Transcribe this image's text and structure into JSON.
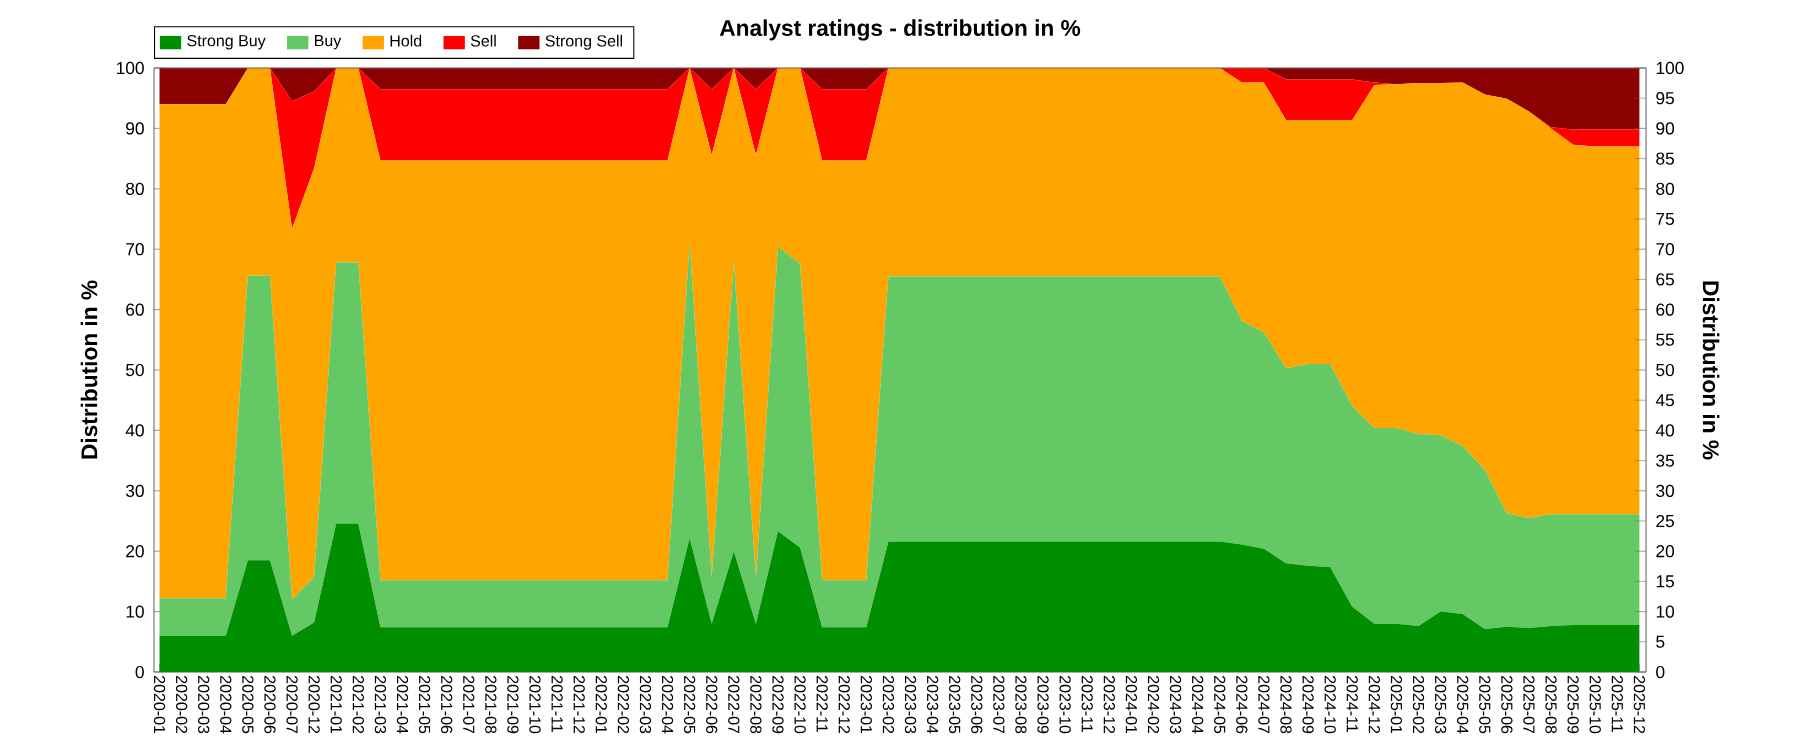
{
  "chart_data": {
    "type": "area",
    "title": "Analyst ratings - distribution in %",
    "ylabel": "Distribution in %",
    "y2label": "Distribution in %",
    "categories": [
      "2020-01",
      "2020-02",
      "2020-03",
      "2020-04",
      "2020-05",
      "2020-06",
      "2020-07",
      "2020-12",
      "2021-01",
      "2021-02",
      "2021-03",
      "2021-04",
      "2021-05",
      "2021-06",
      "2021-07",
      "2021-08",
      "2021-09",
      "2021-10",
      "2021-11",
      "2021-12",
      "2022-01",
      "2022-02",
      "2022-03",
      "2022-04",
      "2022-05",
      "2022-06",
      "2022-07",
      "2022-08",
      "2022-09",
      "2022-10",
      "2022-11",
      "2022-12",
      "2023-01",
      "2023-02",
      "2023-03",
      "2023-04",
      "2023-05",
      "2023-06",
      "2023-07",
      "2023-08",
      "2023-09",
      "2023-10",
      "2023-11",
      "2023-12",
      "2024-01",
      "2024-02",
      "2024-03",
      "2024-04",
      "2024-05",
      "2024-06",
      "2024-07",
      "2024-08",
      "2024-09",
      "2024-10",
      "2024-11",
      "2024-12",
      "2025-01",
      "2025-02",
      "2025-03",
      "2025-04",
      "2025-05",
      "2025-06",
      "2025-07",
      "2025-08",
      "2025-09",
      "2025-10",
      "2025-11",
      "2025-12"
    ],
    "stacked": true,
    "series": [
      {
        "name": "Strong Buy",
        "color": "#008f00",
        "values": [
          6,
          6,
          6,
          6,
          18.5,
          18.5,
          6,
          8.2,
          24.6,
          24.6,
          7.4,
          7.4,
          7.4,
          7.4,
          7.4,
          7.4,
          7.4,
          7.4,
          7.4,
          7.4,
          7.4,
          7.4,
          7.4,
          7.4,
          22.2,
          8,
          20,
          8,
          23.3,
          20.6,
          7.4,
          7.4,
          7.4,
          21.6,
          21.6,
          21.6,
          21.6,
          21.6,
          21.6,
          21.6,
          21.6,
          21.6,
          21.6,
          21.6,
          21.6,
          21.6,
          21.6,
          21.6,
          21.6,
          21.1,
          20.4,
          18,
          17.6,
          17.4,
          10.8,
          8,
          8,
          7.6,
          10,
          9.6,
          7.1,
          7.5,
          7.3,
          7.6,
          7.8,
          7.8,
          7.8,
          7.8
        ]
      },
      {
        "name": "Buy",
        "color": "#64c864",
        "values": [
          6.2,
          6.2,
          6.2,
          6.2,
          47.1,
          47.1,
          6,
          7.5,
          43.2,
          43.2,
          7.8,
          7.8,
          7.8,
          7.8,
          7.8,
          7.8,
          7.8,
          7.8,
          7.8,
          7.8,
          7.8,
          7.8,
          7.8,
          7.8,
          48.8,
          7.7,
          48,
          7.7,
          47.1,
          47,
          7.8,
          7.8,
          7.8,
          43.9,
          43.9,
          43.9,
          43.9,
          43.9,
          43.9,
          43.9,
          43.9,
          43.9,
          43.9,
          43.9,
          43.9,
          43.9,
          43.9,
          43.9,
          43.9,
          37,
          35.8,
          32.3,
          33.4,
          33.6,
          33.2,
          32.4,
          32.4,
          31.8,
          29.2,
          27.8,
          26.4,
          18.8,
          18.2,
          18.5,
          18.3,
          18.3,
          18.3,
          18.3
        ]
      },
      {
        "name": "Hold",
        "color": "#ffa500",
        "values": [
          81.8,
          81.8,
          81.8,
          81.8,
          34.4,
          34.4,
          61.4,
          67.7,
          32.2,
          32.2,
          69.5,
          69.5,
          69.5,
          69.5,
          69.5,
          69.5,
          69.5,
          69.5,
          69.5,
          69.5,
          69.5,
          69.5,
          69.5,
          69.5,
          29,
          69.9,
          32,
          69.9,
          29.6,
          32.4,
          69.5,
          69.5,
          69.5,
          34.5,
          34.5,
          34.5,
          34.5,
          34.5,
          34.5,
          34.5,
          34.5,
          34.5,
          34.5,
          34.5,
          34.5,
          34.5,
          34.5,
          34.5,
          34.5,
          39.5,
          41.4,
          41.1,
          40.4,
          40.4,
          47.4,
          56.8,
          56.9,
          58.1,
          58.3,
          60.2,
          62.1,
          68.6,
          67.3,
          63.9,
          61.2,
          60.9,
          60.9,
          60.9
        ]
      },
      {
        "name": "Sell",
        "color": "#ff0000",
        "values": [
          0,
          0,
          0,
          0,
          0,
          0,
          21.1,
          12.7,
          0,
          0,
          11.8,
          11.8,
          11.8,
          11.8,
          11.8,
          11.8,
          11.8,
          11.8,
          11.8,
          11.8,
          11.8,
          11.8,
          11.8,
          11.8,
          0,
          10.9,
          0,
          10.9,
          0,
          0,
          11.8,
          11.8,
          11.8,
          0,
          0,
          0,
          0,
          0,
          0,
          0,
          0,
          0,
          0,
          0,
          0,
          0,
          0,
          0,
          0,
          2.4,
          2.4,
          6.7,
          6.7,
          6.7,
          6.7,
          0.4,
          0,
          0,
          0,
          0,
          0,
          0,
          0,
          0.2,
          2.5,
          2.8,
          2.8,
          2.8
        ]
      },
      {
        "name": "Strong Sell",
        "color": "#8b0000",
        "values": [
          6,
          6,
          6,
          6,
          0,
          0,
          5.5,
          3.9,
          0,
          0,
          3.5,
          3.5,
          3.5,
          3.5,
          3.5,
          3.5,
          3.5,
          3.5,
          3.5,
          3.5,
          3.5,
          3.5,
          3.5,
          3.5,
          0,
          3.5,
          0,
          3.5,
          0,
          0,
          3.5,
          3.5,
          3.5,
          0,
          0,
          0,
          0,
          0,
          0,
          0,
          0,
          0,
          0,
          0,
          0,
          0,
          0,
          0,
          0,
          0,
          0,
          1.9,
          1.9,
          1.9,
          1.9,
          2.4,
          2.7,
          2.5,
          2.5,
          2.4,
          4.4,
          5.1,
          7.2,
          9.8,
          10.2,
          10.2,
          10.2,
          10.2
        ]
      }
    ],
    "ylim": [
      0,
      100
    ],
    "yticks": [
      0,
      10,
      20,
      30,
      40,
      50,
      60,
      70,
      80,
      90,
      100
    ],
    "y2lim": [
      0,
      100
    ],
    "y2ticks": [
      0,
      5,
      10,
      15,
      20,
      25,
      30,
      35,
      40,
      45,
      50,
      55,
      60,
      65,
      70,
      75,
      80,
      85,
      90,
      95,
      100
    ],
    "grid": "y",
    "legend": "top left"
  }
}
